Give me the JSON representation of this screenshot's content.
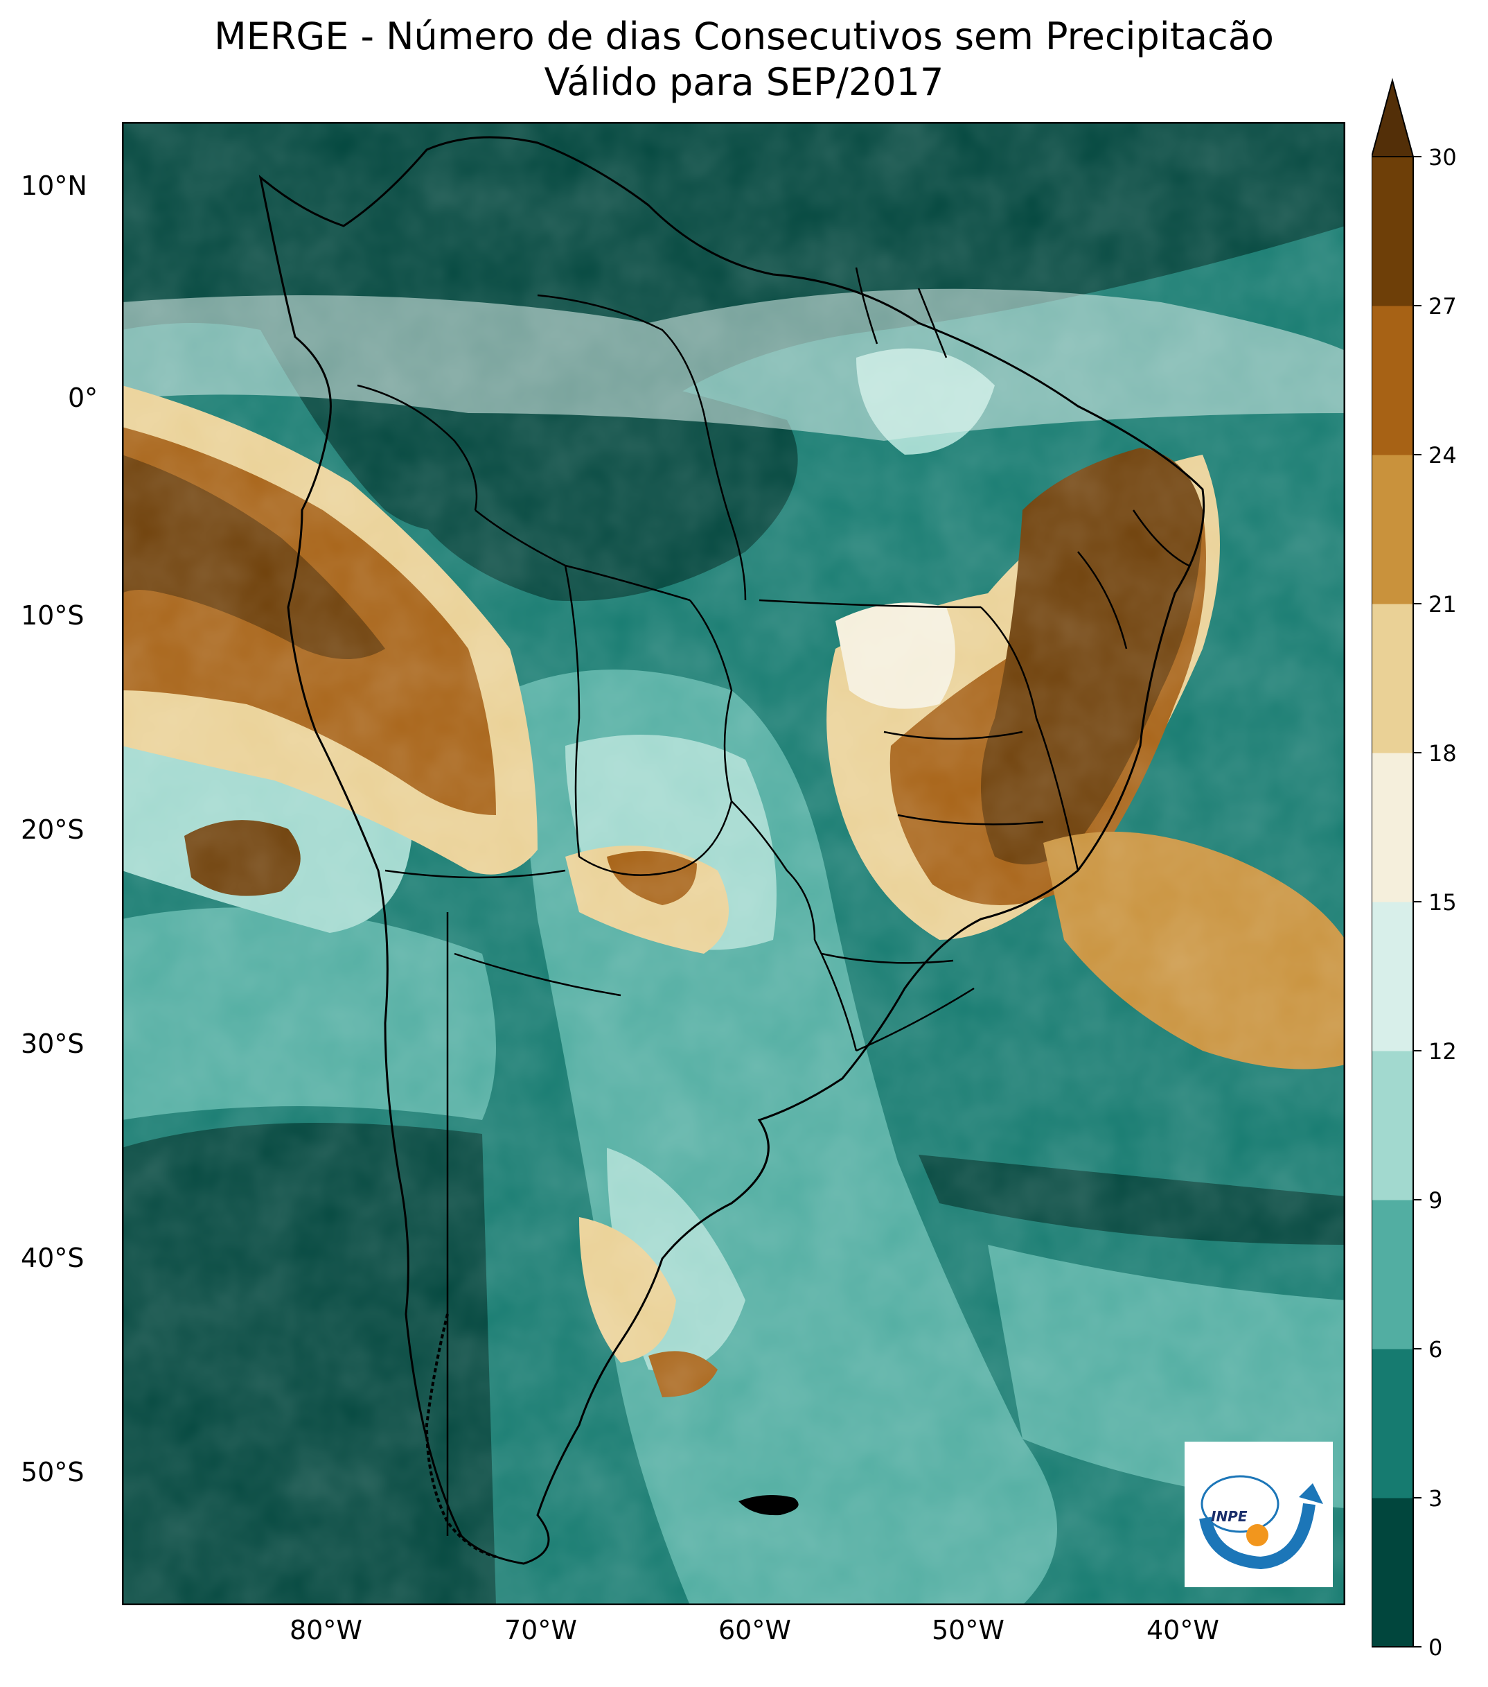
{
  "title": {
    "line1": "MERGE - Número de dias Consecutivos sem Precipitacão",
    "line2": "Válido para SEP/2017"
  },
  "map": {
    "lon_ticks": [
      "80°W",
      "70°W",
      "60°W",
      "50°W",
      "40°W"
    ],
    "lat_ticks": [
      "10°N",
      "0°",
      "10°S",
      "20°S",
      "30°S",
      "40°S",
      "50°S"
    ]
  },
  "colorbar": {
    "ticks": [
      "0",
      "3",
      "6",
      "9",
      "12",
      "15",
      "18",
      "21",
      "24",
      "27",
      "30"
    ],
    "colors": [
      "#01463d",
      "#167b70",
      "#52aea2",
      "#a2d9cf",
      "#d8efea",
      "#f5efdc",
      "#ead196",
      "#c9923c",
      "#a76215",
      "#6e3f08",
      "#532f08"
    ],
    "extend": "max"
  },
  "logo": {
    "text": "INPE"
  }
}
